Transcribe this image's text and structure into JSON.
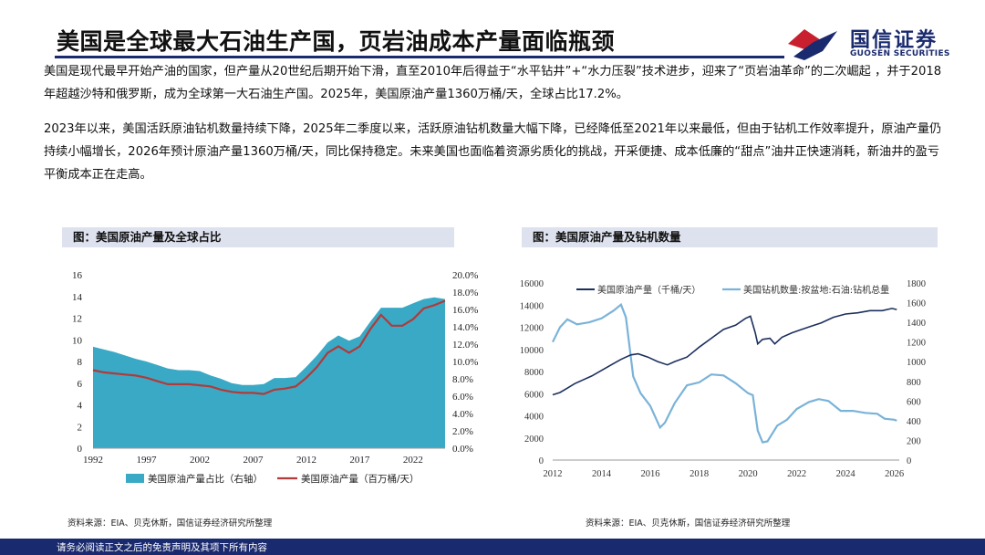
{
  "header": {
    "title": "美国是全球最大石油生产国，页岩油成本产量面临瓶颈",
    "logo_cn": "国信证券",
    "logo_en": "GUOSEN SECURITIES"
  },
  "body": {
    "paragraph1": "美国是现代最早开始产油的国家，但产量从20世纪后期开始下滑，直至2010年后得益于“水平钻井”+“水力压裂”技术进步，迎来了“页岩油革命”的二次崛起 ，并于2018年超越沙特和俄罗斯，成为全球第一大石油生产国。2025年，美国原油产量1360万桶/天，全球占比17.2%。",
    "paragraph2": "2023年以来，美国活跃原油钻机数量持续下降，2025年二季度以来，活跃原油钻机数量大幅下降，已经降低至2021年以来最低，但由于钻机工作效率提升，原油产量仍持续小幅增长，2026年预计原油产量1360万桶/天，同比保持稳定。未来美国也面临着资源劣质化的挑战，开采便捷、成本低廉的“甜点”油井正快速消耗，新油井的盈亏平衡成本正在走高。"
  },
  "panels": {
    "left_title": "图：美国原油产量及全球占比",
    "right_title": "图：美国原油产量及钻机数量",
    "left_source": "资料来源：EIA、贝克休斯，国信证券经济研究所整理",
    "right_source": "资料来源：EIA、贝克休斯，国信证券经济研究所整理"
  },
  "footer": {
    "disclaimer": "请务必阅读正文之后的免责声明及其项下所有内容"
  },
  "colors": {
    "navy": "#1a2a6e",
    "teal": "#3aa9c5",
    "red": "#b13a3a",
    "dark_line": "#1c2f5e",
    "light_blue": "#7ab3d8"
  },
  "chart_data": [
    {
      "type": "area+line",
      "title": "美国原油产量及全球占比",
      "x": [
        1992,
        1993,
        1994,
        1995,
        1996,
        1997,
        1998,
        1999,
        2000,
        2001,
        2002,
        2003,
        2004,
        2005,
        2006,
        2007,
        2008,
        2009,
        2010,
        2011,
        2012,
        2013,
        2014,
        2015,
        2016,
        2017,
        2018,
        2019,
        2020,
        2021,
        2022,
        2023,
        2024,
        2025
      ],
      "x_ticks": [
        "1992",
        "1997",
        "2002",
        "2007",
        "2012",
        "2017",
        "2022"
      ],
      "series": [
        {
          "name": "美国原油产量占比（右轴）",
          "axis": "right",
          "kind": "area",
          "values": [
            11.7,
            11.4,
            11.1,
            10.7,
            10.3,
            10.0,
            9.6,
            9.2,
            9.0,
            9.0,
            8.9,
            8.4,
            8.0,
            7.5,
            7.3,
            7.3,
            7.4,
            8.1,
            8.1,
            8.2,
            9.4,
            10.7,
            12.2,
            13.0,
            12.4,
            12.9,
            14.6,
            16.2,
            16.2,
            16.2,
            16.7,
            17.2,
            17.4,
            17.2
          ]
        },
        {
          "name": "美国原油产量（百万桶/天）",
          "axis": "left",
          "kind": "line",
          "values": [
            7.2,
            7.0,
            6.9,
            6.8,
            6.7,
            6.5,
            6.2,
            5.9,
            5.9,
            5.9,
            5.8,
            5.7,
            5.4,
            5.2,
            5.1,
            5.1,
            5.0,
            5.4,
            5.5,
            5.7,
            6.5,
            7.5,
            8.8,
            9.4,
            8.8,
            9.4,
            11.0,
            12.3,
            11.3,
            11.3,
            11.9,
            12.9,
            13.2,
            13.6
          ]
        }
      ],
      "left_axis": {
        "ylim": [
          0,
          16
        ],
        "ticks": [
          "0",
          "2",
          "4",
          "6",
          "8",
          "10",
          "12",
          "14",
          "16"
        ]
      },
      "right_axis": {
        "ylim": [
          0,
          20
        ],
        "ticks": [
          "0.0%",
          "2.0%",
          "4.0%",
          "6.0%",
          "8.0%",
          "10.0%",
          "12.0%",
          "14.0%",
          "16.0%",
          "18.0%",
          "20.0%"
        ]
      },
      "legend": [
        "美国原油产量占比（右轴）",
        "美国原油产量（百万桶/天）"
      ]
    },
    {
      "type": "line",
      "title": "美国原油产量及钻机数量",
      "x_ticks": [
        "2012",
        "2014",
        "2016",
        "2018",
        "2020",
        "2022",
        "2024",
        "2026"
      ],
      "x_range": [
        2012,
        2026.2
      ],
      "series": [
        {
          "name": "美国原油产量（千桶/天）",
          "axis": "left",
          "points": [
            [
              2012,
              5900
            ],
            [
              2012.3,
              6100
            ],
            [
              2012.6,
              6500
            ],
            [
              2012.9,
              6900
            ],
            [
              2013.2,
              7200
            ],
            [
              2013.6,
              7600
            ],
            [
              2014,
              8100
            ],
            [
              2014.4,
              8600
            ],
            [
              2014.8,
              9100
            ],
            [
              2015.2,
              9500
            ],
            [
              2015.5,
              9600
            ],
            [
              2015.9,
              9300
            ],
            [
              2016.3,
              8900
            ],
            [
              2016.7,
              8600
            ],
            [
              2017,
              8900
            ],
            [
              2017.5,
              9300
            ],
            [
              2018,
              10200
            ],
            [
              2018.5,
              11000
            ],
            [
              2019,
              11800
            ],
            [
              2019.5,
              12200
            ],
            [
              2019.9,
              12800
            ],
            [
              2020.1,
              13000
            ],
            [
              2020.3,
              11500
            ],
            [
              2020.4,
              10500
            ],
            [
              2020.6,
              10900
            ],
            [
              2020.9,
              11000
            ],
            [
              2021.1,
              10500
            ],
            [
              2021.4,
              11100
            ],
            [
              2021.8,
              11500
            ],
            [
              2022.2,
              11800
            ],
            [
              2022.6,
              12100
            ],
            [
              2023,
              12400
            ],
            [
              2023.5,
              12900
            ],
            [
              2024,
              13200
            ],
            [
              2024.5,
              13300
            ],
            [
              2025,
              13500
            ],
            [
              2025.5,
              13500
            ],
            [
              2025.9,
              13700
            ],
            [
              2026.1,
              13600
            ]
          ]
        },
        {
          "name": "美国钻机数量:按盆地:石油:钻机总量",
          "axis": "right",
          "points": [
            [
              2012,
              1200
            ],
            [
              2012.3,
              1350
            ],
            [
              2012.6,
              1430
            ],
            [
              2013,
              1380
            ],
            [
              2013.5,
              1400
            ],
            [
              2014,
              1440
            ],
            [
              2014.5,
              1520
            ],
            [
              2014.8,
              1580
            ],
            [
              2015,
              1450
            ],
            [
              2015.3,
              850
            ],
            [
              2015.6,
              680
            ],
            [
              2016,
              550
            ],
            [
              2016.4,
              330
            ],
            [
              2016.6,
              380
            ],
            [
              2017,
              580
            ],
            [
              2017.5,
              760
            ],
            [
              2018,
              790
            ],
            [
              2018.5,
              870
            ],
            [
              2019,
              860
            ],
            [
              2019.5,
              780
            ],
            [
              2020,
              680
            ],
            [
              2020.2,
              660
            ],
            [
              2020.4,
              300
            ],
            [
              2020.6,
              180
            ],
            [
              2020.8,
              190
            ],
            [
              2021.2,
              350
            ],
            [
              2021.6,
              410
            ],
            [
              2022,
              520
            ],
            [
              2022.5,
              590
            ],
            [
              2022.9,
              620
            ],
            [
              2023.3,
              600
            ],
            [
              2023.8,
              500
            ],
            [
              2024.3,
              500
            ],
            [
              2024.8,
              480
            ],
            [
              2025.3,
              470
            ],
            [
              2025.6,
              420
            ],
            [
              2026,
              410
            ],
            [
              2026.1,
              400
            ]
          ]
        }
      ],
      "left_axis": {
        "ylim": [
          0,
          16000
        ],
        "ticks": [
          "0",
          "2000",
          "4000",
          "6000",
          "8000",
          "10000",
          "12000",
          "14000",
          "16000"
        ]
      },
      "right_axis": {
        "ylim": [
          0,
          1800
        ],
        "ticks": [
          "0",
          "200",
          "400",
          "600",
          "800",
          "1000",
          "1200",
          "1400",
          "1600",
          "1800"
        ]
      },
      "legend": [
        "美国原油产量（千桶/天）",
        "美国钻机数量:按盆地:石油:钻机总量"
      ]
    }
  ]
}
